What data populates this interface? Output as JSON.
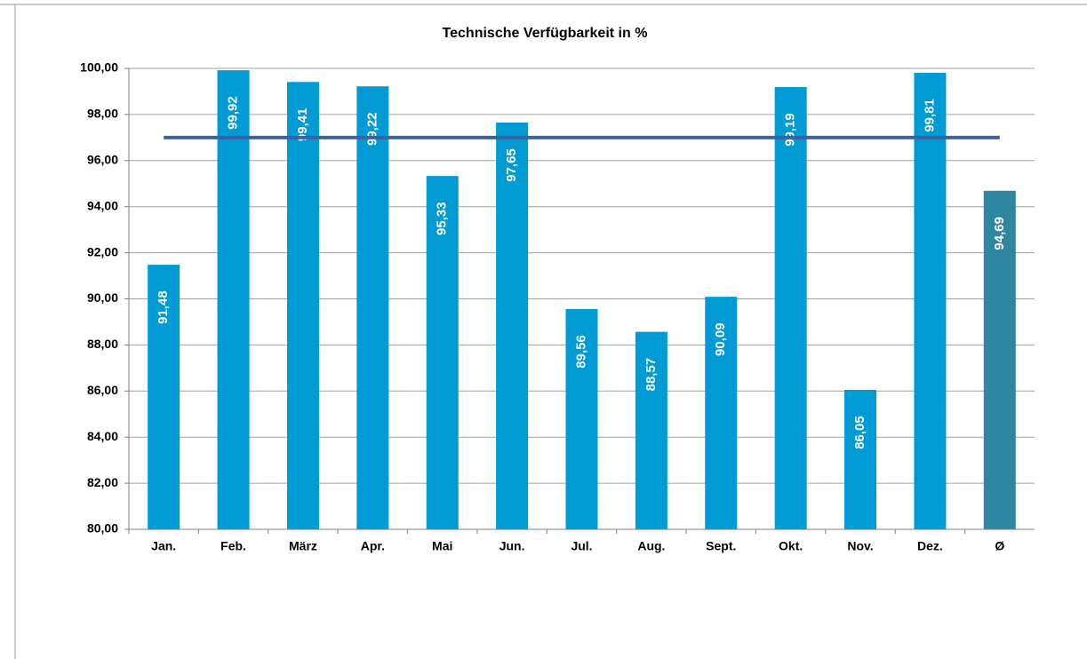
{
  "chart_data": {
    "type": "bar",
    "title": "Technische Verfügbarkeit in %",
    "categories": [
      "Jan.",
      "Feb.",
      "März",
      "Apr.",
      "Mai",
      "Jun.",
      "Jul.",
      "Aug.",
      "Sept.",
      "Okt.",
      "Nov.",
      "Dez.",
      "Ø"
    ],
    "values": [
      91.48,
      99.92,
      99.41,
      99.22,
      95.33,
      97.65,
      89.56,
      88.57,
      90.09,
      99.19,
      86.05,
      99.81,
      94.69
    ],
    "value_labels": [
      "91,48",
      "99,92",
      "99,41",
      "99,22",
      "95,33",
      "97,65",
      "89,56",
      "88,57",
      "90,09",
      "99,19",
      "86,05",
      "99,81",
      "94,69"
    ],
    "colors": [
      "#009ad5",
      "#009ad5",
      "#009ad5",
      "#009ad5",
      "#009ad5",
      "#009ad5",
      "#009ad5",
      "#009ad5",
      "#009ad5",
      "#009ad5",
      "#009ad5",
      "#009ad5",
      "#2e86a0"
    ],
    "reference_line": 97,
    "reference_color": "#3a63a0",
    "ylim": [
      80,
      100
    ],
    "yticks": [
      {
        "value": 80,
        "label": "80,00"
      },
      {
        "value": 82,
        "label": "82,00"
      },
      {
        "value": 84,
        "label": "84,00"
      },
      {
        "value": 86,
        "label": "86,00"
      },
      {
        "value": 88,
        "label": "88,00"
      },
      {
        "value": 90,
        "label": "90,00"
      },
      {
        "value": 92,
        "label": "92,00"
      },
      {
        "value": 94,
        "label": "94,00"
      },
      {
        "value": 96,
        "label": "96,00"
      },
      {
        "value": 98,
        "label": "98,00"
      },
      {
        "value": 100,
        "label": "100,00"
      }
    ],
    "grid": true
  }
}
